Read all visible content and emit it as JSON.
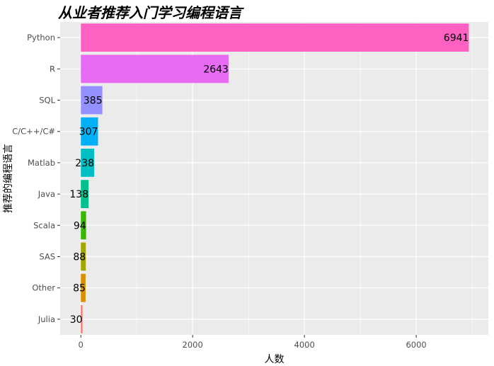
{
  "chart_data": {
    "type": "bar",
    "orientation": "horizontal",
    "title": "从业者推荐入门学习编程语言",
    "xlabel": "人数",
    "ylabel": "推荐的编程语言",
    "categories": [
      "Python",
      "R",
      "SQL",
      "C/C++/C#",
      "Matlab",
      "Java",
      "Scala",
      "SAS",
      "Other",
      "Julia"
    ],
    "values": [
      6941,
      2643,
      385,
      307,
      238,
      138,
      94,
      88,
      85,
      30
    ],
    "colors": [
      "#FF61C3",
      "#E76BF3",
      "#9590FF",
      "#00B0F6",
      "#00BFC4",
      "#00C08B",
      "#39B600",
      "#A3A500",
      "#D89000",
      "#F8766D"
    ],
    "xticks": [
      0,
      2000,
      4000,
      6000
    ],
    "xlim": [
      -370,
      7290
    ],
    "grid": true,
    "legend": "none",
    "panel_background": "#EBEBEB"
  }
}
